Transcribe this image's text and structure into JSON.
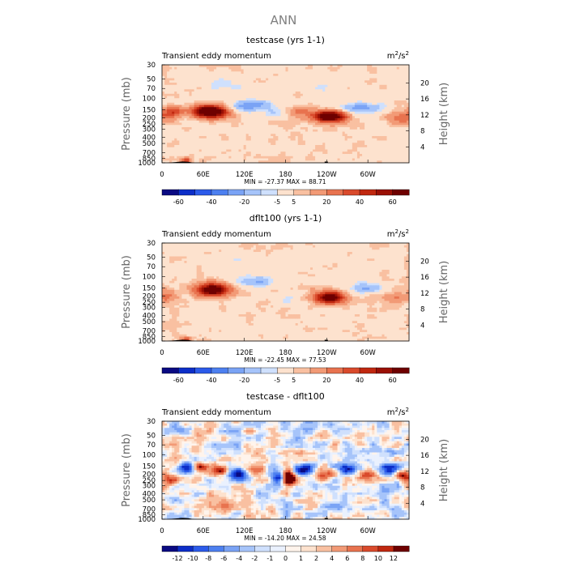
{
  "figure_title": "ANN",
  "colors": {
    "background": "#ffffff",
    "text": "#000000",
    "title_gray": "#7f7f7f",
    "axis_gray": "#666666"
  },
  "shared": {
    "variable_label": "Transient eddy momentum",
    "units_label": "m",
    "units_sup1": "2",
    "units_sep": "/s",
    "units_sup2": "2",
    "ylabel_left": "Pressure (mb)",
    "ylabel_right": "Height (km)"
  },
  "chart_data": [
    {
      "type": "heatmap",
      "title": "testcase (yrs 1-1)",
      "x_ticks": [
        "0",
        "60E",
        "120E",
        "180",
        "120W",
        "60W"
      ],
      "x_range": [
        0,
        360
      ],
      "x_tick_values": [
        0,
        60,
        120,
        180,
        240,
        300
      ],
      "y_ticks": [
        "30",
        "50",
        "70",
        "100",
        "150",
        "200",
        "250",
        "300",
        "400",
        "500",
        "700",
        "850",
        "1000"
      ],
      "y_tick_values": [
        30,
        50,
        70,
        100,
        150,
        200,
        250,
        300,
        400,
        500,
        700,
        850,
        1000
      ],
      "y_right_ticks": [
        "20",
        "16",
        "12",
        "8",
        "4"
      ],
      "y_right_values": [
        20,
        16,
        12,
        8,
        4
      ],
      "stats": "MIN = -27.37   MAX =  88.71",
      "min": -27.37,
      "max": 88.71,
      "colorbar_levels": [
        "-60",
        "-40",
        "-20",
        "-5",
        "5",
        "20",
        "40",
        "60"
      ],
      "colorbar_colors": [
        "#0a0a82",
        "#0d2ec8",
        "#2c5bea",
        "#4d80f0",
        "#7aa3f5",
        "#a6c4fa",
        "#cfe0fd",
        "#fde2ce",
        "#f9c0a1",
        "#f29a76",
        "#e8734f",
        "#d94a2c",
        "#c02810",
        "#9a1005",
        "#6e0000"
      ],
      "colorbar_bounds": [
        -80,
        -60,
        -50,
        -40,
        -30,
        -20,
        -10,
        -5,
        5,
        10,
        20,
        30,
        40,
        50,
        60
      ],
      "field": {
        "base": 3,
        "blobs": [
          {
            "lon": 70,
            "p": 160,
            "amp": 88,
            "slon": 18,
            "sp": 0.16
          },
          {
            "lon": 245,
            "p": 190,
            "amp": 82,
            "slon": 16,
            "sp": 0.15
          },
          {
            "lon": 15,
            "p": 160,
            "amp": 32,
            "slon": 12,
            "sp": 0.13
          },
          {
            "lon": 200,
            "p": 160,
            "amp": 16,
            "slon": 14,
            "sp": 0.14
          },
          {
            "lon": 350,
            "p": 200,
            "amp": 24,
            "slon": 14,
            "sp": 0.14
          },
          {
            "lon": 35,
            "p": 930,
            "amp": 38,
            "slon": 5,
            "sp": 0.06
          },
          {
            "lon": 130,
            "p": 130,
            "amp": -30,
            "slon": 22,
            "sp": 0.14
          },
          {
            "lon": 290,
            "p": 140,
            "amp": -28,
            "slon": 22,
            "sp": 0.13
          },
          {
            "lon": 165,
            "p": 170,
            "amp": -12,
            "slon": 14,
            "sp": 0.12
          },
          {
            "lon": 95,
            "p": 60,
            "amp": -9,
            "slon": 25,
            "sp": 0.2
          },
          {
            "lon": 230,
            "p": 60,
            "amp": -8,
            "slon": 30,
            "sp": 0.2
          }
        ],
        "noise": 4
      }
    },
    {
      "type": "heatmap",
      "title": "dflt100 (yrs 1-1)",
      "x_ticks": [
        "0",
        "60E",
        "120E",
        "180",
        "120W",
        "60W"
      ],
      "x_range": [
        0,
        360
      ],
      "x_tick_values": [
        0,
        60,
        120,
        180,
        240,
        300
      ],
      "y_ticks": [
        "30",
        "50",
        "70",
        "100",
        "150",
        "200",
        "250",
        "300",
        "400",
        "500",
        "700",
        "850",
        "1000"
      ],
      "y_tick_values": [
        30,
        50,
        70,
        100,
        150,
        200,
        250,
        300,
        400,
        500,
        700,
        850,
        1000
      ],
      "y_right_ticks": [
        "20",
        "16",
        "12",
        "8",
        "4"
      ],
      "y_right_values": [
        20,
        16,
        12,
        8,
        4
      ],
      "stats": "MIN = -22.45   MAX =  77.53",
      "min": -22.45,
      "max": 77.53,
      "colorbar_levels": [
        "-60",
        "-40",
        "-20",
        "-5",
        "5",
        "20",
        "40",
        "60"
      ],
      "colorbar_colors": [
        "#0a0a82",
        "#0d2ec8",
        "#2c5bea",
        "#4d80f0",
        "#7aa3f5",
        "#a6c4fa",
        "#cfe0fd",
        "#fde2ce",
        "#f9c0a1",
        "#f29a76",
        "#e8734f",
        "#d94a2c",
        "#c02810",
        "#9a1005",
        "#6e0000"
      ],
      "colorbar_bounds": [
        -80,
        -60,
        -50,
        -40,
        -30,
        -20,
        -10,
        -5,
        5,
        10,
        20,
        30,
        40,
        50,
        60
      ],
      "field": {
        "base": 3,
        "blobs": [
          {
            "lon": 75,
            "p": 160,
            "amp": 77,
            "slon": 17,
            "sp": 0.16
          },
          {
            "lon": 243,
            "p": 210,
            "amp": 72,
            "slon": 16,
            "sp": 0.15
          },
          {
            "lon": 10,
            "p": 200,
            "amp": 20,
            "slon": 10,
            "sp": 0.14
          },
          {
            "lon": 340,
            "p": 210,
            "amp": 18,
            "slon": 14,
            "sp": 0.14
          },
          {
            "lon": 35,
            "p": 930,
            "amp": 34,
            "slon": 5,
            "sp": 0.06
          },
          {
            "lon": 135,
            "p": 120,
            "amp": -24,
            "slon": 20,
            "sp": 0.14
          },
          {
            "lon": 300,
            "p": 150,
            "amp": -22,
            "slon": 18,
            "sp": 0.13
          },
          {
            "lon": 185,
            "p": 210,
            "amp": -10,
            "slon": 10,
            "sp": 0.14
          },
          {
            "lon": 100,
            "p": 55,
            "amp": -8,
            "slon": 25,
            "sp": 0.2
          }
        ],
        "noise": 4
      }
    },
    {
      "type": "heatmap",
      "title": "testcase - dflt100",
      "x_ticks": [
        "0",
        "60E",
        "120E",
        "180",
        "120W",
        "60W"
      ],
      "x_range": [
        0,
        360
      ],
      "x_tick_values": [
        0,
        60,
        120,
        180,
        240,
        300
      ],
      "y_ticks": [
        "30",
        "50",
        "70",
        "100",
        "150",
        "200",
        "250",
        "300",
        "400",
        "500",
        "700",
        "850",
        "1000"
      ],
      "y_tick_values": [
        30,
        50,
        70,
        100,
        150,
        200,
        250,
        300,
        400,
        500,
        700,
        850,
        1000
      ],
      "y_right_ticks": [
        "20",
        "16",
        "12",
        "8",
        "4"
      ],
      "y_right_values": [
        20,
        16,
        12,
        8,
        4
      ],
      "stats": "MIN = -14.20   MAX =  24.58",
      "min": -14.2,
      "max": 24.58,
      "colorbar_levels": [
        "-12",
        "-10",
        "-8",
        "-6",
        "-4",
        "-2",
        "-1",
        "0",
        "1",
        "2",
        "4",
        "6",
        "8",
        "10",
        "12"
      ],
      "colorbar_colors": [
        "#0a0a82",
        "#0d2ec8",
        "#2c5bea",
        "#4d80f0",
        "#7aa3f5",
        "#a6c4fa",
        "#cfe0fd",
        "#eaf1fe",
        "#fff4ec",
        "#fde2ce",
        "#f9c0a1",
        "#f29a76",
        "#e8734f",
        "#d94a2c",
        "#c02810",
        "#6e0000"
      ],
      "colorbar_bounds": [
        -14,
        -12,
        -10,
        -8,
        -6,
        -4,
        -2,
        -1,
        0,
        1,
        2,
        4,
        6,
        8,
        10,
        12
      ],
      "field": {
        "base": 0,
        "blobs": [
          {
            "lon": 35,
            "p": 165,
            "amp": -12,
            "slon": 10,
            "sp": 0.12
          },
          {
            "lon": 55,
            "p": 160,
            "amp": 10,
            "slon": 8,
            "sp": 0.1
          },
          {
            "lon": 85,
            "p": 170,
            "amp": 11,
            "slon": 8,
            "sp": 0.12
          },
          {
            "lon": 110,
            "p": 200,
            "amp": -13,
            "slon": 10,
            "sp": 0.14
          },
          {
            "lon": 140,
            "p": 170,
            "amp": 9,
            "slon": 10,
            "sp": 0.14
          },
          {
            "lon": 170,
            "p": 220,
            "amp": -12,
            "slon": 8,
            "sp": 0.16
          },
          {
            "lon": 185,
            "p": 230,
            "amp": 24,
            "slon": 6,
            "sp": 0.18
          },
          {
            "lon": 205,
            "p": 170,
            "amp": -13,
            "slon": 10,
            "sp": 0.14
          },
          {
            "lon": 235,
            "p": 200,
            "amp": 10,
            "slon": 10,
            "sp": 0.14
          },
          {
            "lon": 270,
            "p": 170,
            "amp": -11,
            "slon": 10,
            "sp": 0.13
          },
          {
            "lon": 300,
            "p": 210,
            "amp": 8,
            "slon": 10,
            "sp": 0.14
          },
          {
            "lon": 330,
            "p": 160,
            "amp": -12,
            "slon": 10,
            "sp": 0.12
          },
          {
            "lon": 350,
            "p": 210,
            "amp": 14,
            "slon": 8,
            "sp": 0.13
          },
          {
            "lon": 10,
            "p": 240,
            "amp": 8,
            "slon": 8,
            "sp": 0.14
          },
          {
            "lon": 15,
            "p": 900,
            "amp": -6,
            "slon": 8,
            "sp": 0.1
          },
          {
            "lon": 100,
            "p": 600,
            "amp": 4,
            "slon": 15,
            "sp": 0.14
          },
          {
            "lon": 250,
            "p": 600,
            "amp": -4,
            "slon": 15,
            "sp": 0.14
          }
        ],
        "noise": 3.5
      }
    }
  ]
}
